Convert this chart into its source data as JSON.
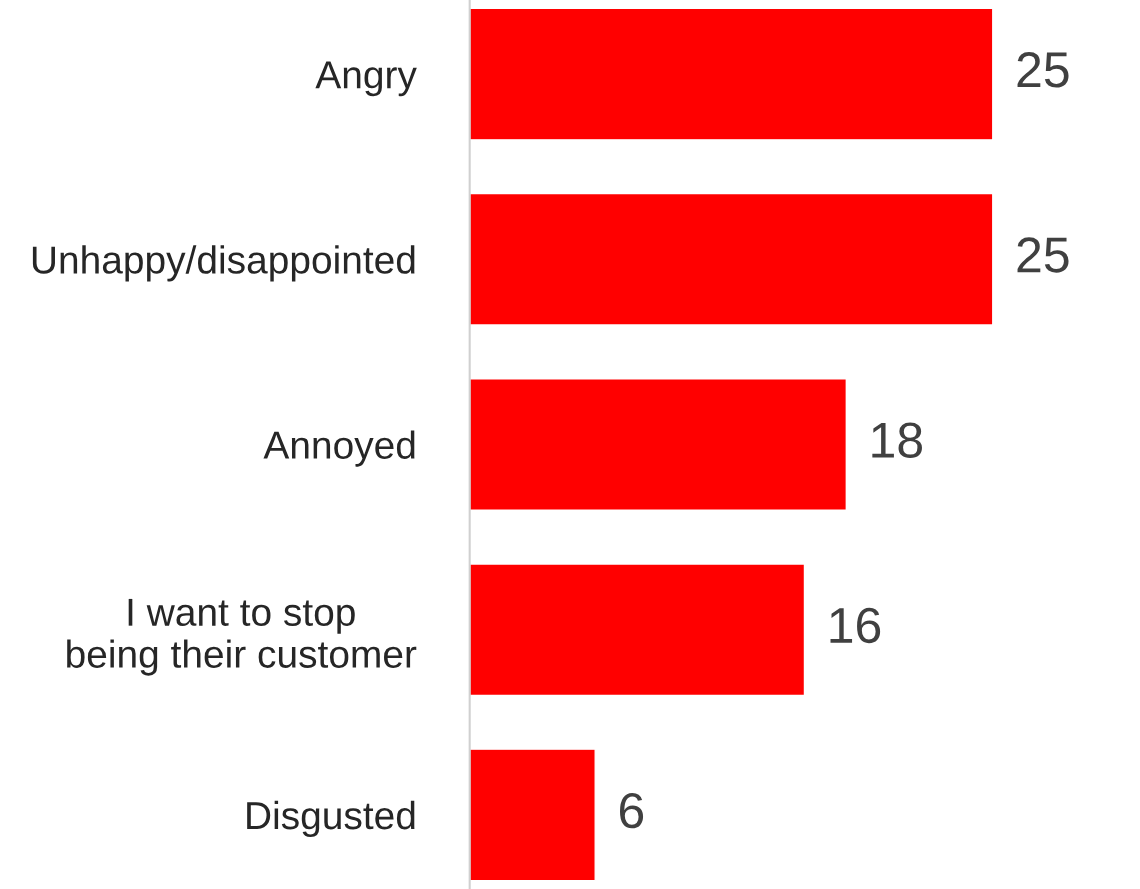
{
  "chart_data": {
    "type": "bar",
    "orientation": "horizontal",
    "categories": [
      "Angry",
      "Unhappy/disappointed",
      "Annoyed",
      "I want to stop\nbeing their customer",
      "Disgusted"
    ],
    "values": [
      25,
      25,
      18,
      16,
      6
    ],
    "color": "#ff0000",
    "data_labels": true,
    "grid": false,
    "legend": false
  }
}
